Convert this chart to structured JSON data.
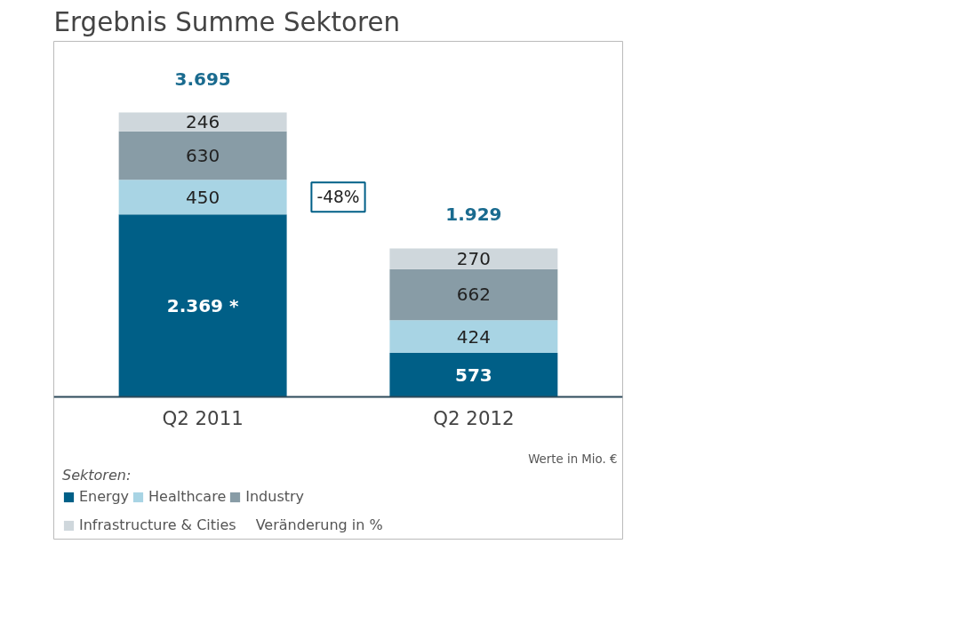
{
  "chart_data": {
    "type": "bar",
    "stacked": true,
    "title": "Ergebnis Summe Sektoren",
    "legend_title": "Sektoren:",
    "categories": [
      "Q2 2011",
      "Q2 2012"
    ],
    "series": [
      {
        "name": "Energy",
        "color": "#005f87",
        "values": [
          2369,
          573
        ],
        "value_labels": [
          "2.369 *",
          "573"
        ]
      },
      {
        "name": "Healthcare",
        "color": "#a8d4e4",
        "values": [
          450,
          424
        ],
        "value_labels": [
          "450",
          "424"
        ]
      },
      {
        "name": "Industry",
        "color": "#889ca6",
        "values": [
          630,
          662
        ],
        "value_labels": [
          "630",
          "662"
        ]
      },
      {
        "name": "Infrastructure & Cities",
        "color": "#cfd7dc",
        "values": [
          246,
          270
        ],
        "value_labels": [
          "246",
          "270"
        ]
      }
    ],
    "totals": [
      "3.695",
      "1.929"
    ],
    "annotations": [
      "-48%",
      "Werte in Mio. €",
      "Veränderung in %"
    ],
    "legend": "bottom",
    "grid": false
  }
}
